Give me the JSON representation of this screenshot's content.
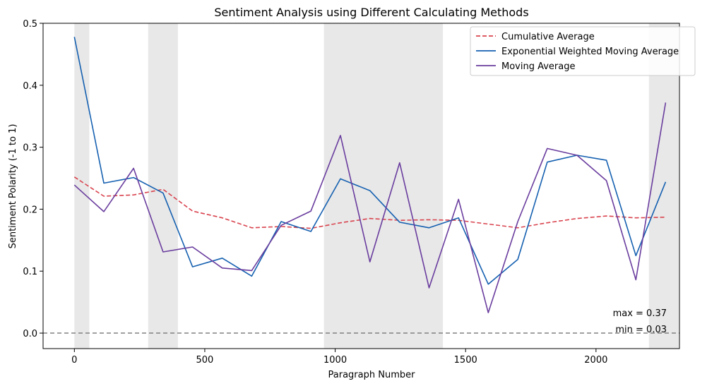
{
  "chart_data": {
    "type": "line",
    "title": "Sentiment Analysis using Different Calculating Methods",
    "xlabel": "Paragraph Number",
    "ylabel": "Sentiment Polarity (-1 to 1)",
    "xlim": [
      -120,
      2320
    ],
    "ylim": [
      -0.025,
      0.5
    ],
    "xticks": [
      0,
      500,
      1000,
      1500,
      2000
    ],
    "yticks": [
      0.0,
      0.1,
      0.2,
      0.3,
      0.4,
      0.5
    ],
    "xtick_labels": [
      "0",
      "500",
      "1000",
      "1500",
      "2000"
    ],
    "ytick_labels": [
      "0.0",
      "0.1",
      "0.2",
      "0.3",
      "0.4",
      "0.5"
    ],
    "grid": false,
    "legend_position": "top-right",
    "shaded_regions": [
      [
        0,
        57
      ],
      [
        283,
        397
      ],
      [
        957,
        1413
      ],
      [
        2203,
        2317
      ]
    ],
    "reference_line": {
      "y": 0,
      "color": "#808080",
      "style": "dashed"
    },
    "series": [
      {
        "name": "Cumulative Average",
        "color": "#d9444f",
        "style": "dashed",
        "x": [
          0,
          113,
          227,
          340,
          453,
          567,
          680,
          793,
          907,
          1020,
          1133,
          1247,
          1360,
          1473,
          1587,
          1700,
          1813,
          1927,
          2040,
          2153,
          2267
        ],
        "values": [
          0.252,
          0.221,
          0.223,
          0.232,
          0.197,
          0.186,
          0.17,
          0.172,
          0.169,
          0.178,
          0.185,
          0.182,
          0.183,
          0.182,
          0.176,
          0.17,
          0.178,
          0.185,
          0.189,
          0.186,
          0.187
        ]
      },
      {
        "name": "Exponential Weighted Moving Average",
        "color": "#1560b0",
        "style": "solid",
        "x": [
          0,
          113,
          227,
          340,
          453,
          567,
          680,
          793,
          907,
          1020,
          1133,
          1247,
          1360,
          1473,
          1587,
          1700,
          1813,
          1927,
          2040,
          2153,
          2267
        ],
        "values": [
          0.478,
          0.242,
          0.251,
          0.226,
          0.107,
          0.121,
          0.092,
          0.18,
          0.164,
          0.249,
          0.23,
          0.179,
          0.17,
          0.186,
          0.079,
          0.119,
          0.276,
          0.287,
          0.279,
          0.125,
          0.244
        ]
      },
      {
        "name": "Moving Average",
        "color": "#6a3d9e",
        "style": "solid",
        "x": [
          0,
          113,
          227,
          340,
          453,
          567,
          680,
          793,
          907,
          1020,
          1133,
          1247,
          1360,
          1473,
          1587,
          1700,
          1813,
          1927,
          2040,
          2153,
          2267
        ],
        "values": [
          0.239,
          0.196,
          0.266,
          0.131,
          0.139,
          0.105,
          0.101,
          0.174,
          0.197,
          0.319,
          0.115,
          0.275,
          0.073,
          0.216,
          0.033,
          0.18,
          0.298,
          0.287,
          0.246,
          0.086,
          0.372
        ]
      }
    ],
    "annotations": [
      {
        "text": "max = 0.37"
      },
      {
        "text": "min = 0.03"
      }
    ]
  }
}
